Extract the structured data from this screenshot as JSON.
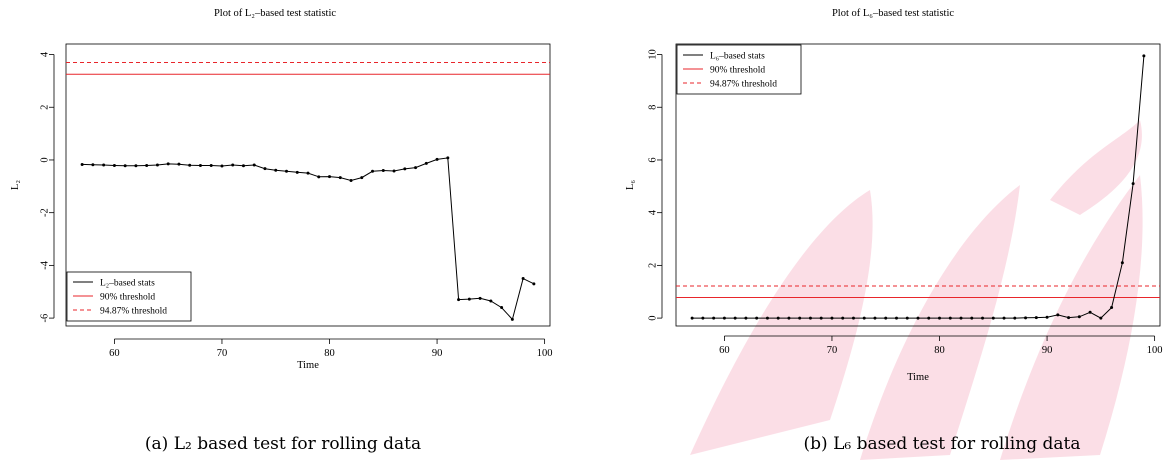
{
  "chart_data": [
    {
      "type": "line",
      "title": "Plot of L₂–based test statistic",
      "xlabel": "Time",
      "ylabel": "L₂",
      "xlim": [
        55.5,
        100.5
      ],
      "ylim": [
        -6.3,
        4.4
      ],
      "xticks": [
        60,
        70,
        80,
        90,
        100
      ],
      "yticks": [
        -6,
        -4,
        -2,
        0,
        2,
        4
      ],
      "series": [
        {
          "name": "L₂–based stats",
          "color": "#000000",
          "x": [
            57,
            58,
            59,
            60,
            61,
            62,
            63,
            64,
            65,
            66,
            67,
            68,
            69,
            70,
            71,
            72,
            73,
            74,
            75,
            76,
            77,
            78,
            79,
            80,
            81,
            82,
            83,
            84,
            85,
            86,
            87,
            88,
            89,
            90,
            91,
            92,
            93,
            94,
            95,
            96,
            97,
            98,
            99
          ],
          "y": [
            -0.17,
            -0.18,
            -0.19,
            -0.21,
            -0.22,
            -0.22,
            -0.21,
            -0.19,
            -0.15,
            -0.16,
            -0.2,
            -0.21,
            -0.21,
            -0.23,
            -0.19,
            -0.22,
            -0.19,
            -0.33,
            -0.39,
            -0.43,
            -0.47,
            -0.5,
            -0.64,
            -0.63,
            -0.67,
            -0.78,
            -0.67,
            -0.43,
            -0.4,
            -0.42,
            -0.34,
            -0.29,
            -0.13,
            0.02,
            0.08,
            -5.3,
            -5.28,
            -5.25,
            -5.35,
            -5.6,
            -6.05,
            -4.5,
            -4.7
          ]
        }
      ],
      "thresholds": [
        {
          "name": "90% threshold",
          "value": 3.25,
          "color": "#e8262b",
          "style": "solid"
        },
        {
          "name": "94.87% threshold",
          "value": 3.7,
          "color": "#e8262b",
          "style": "dashed"
        }
      ],
      "legend_position": "bottom-left",
      "caption": "(a) L₂ based test for rolling data"
    },
    {
      "type": "line",
      "title": "Plot of L₆–based test statistic",
      "xlabel": "Time",
      "ylabel": "L₆",
      "xlim": [
        55.5,
        100.5
      ],
      "ylim": [
        -0.3,
        10.4
      ],
      "xticks": [
        60,
        70,
        80,
        90,
        100
      ],
      "yticks": [
        0,
        2,
        4,
        6,
        8,
        10
      ],
      "series": [
        {
          "name": "L₆–based stats",
          "color": "#000000",
          "x": [
            57,
            58,
            59,
            60,
            61,
            62,
            63,
            64,
            65,
            66,
            67,
            68,
            69,
            70,
            71,
            72,
            73,
            74,
            75,
            76,
            77,
            78,
            79,
            80,
            81,
            82,
            83,
            84,
            85,
            86,
            87,
            88,
            89,
            90,
            91,
            92,
            93,
            94,
            95,
            96,
            97,
            98,
            99
          ],
          "y": [
            0,
            0,
            0,
            0,
            0,
            0,
            0,
            0,
            0,
            0,
            0,
            0,
            0,
            0,
            0,
            0,
            0,
            0,
            0,
            0,
            0,
            0,
            0,
            0,
            0,
            0,
            0,
            0,
            0,
            0,
            0,
            0.01,
            0.02,
            0.03,
            0.12,
            0.02,
            0.05,
            0.22,
            0.0,
            0.4,
            2.1,
            5.1,
            9.95
          ]
        }
      ],
      "thresholds": [
        {
          "name": "90% threshold",
          "value": 0.78,
          "color": "#e8262b",
          "style": "solid"
        },
        {
          "name": "94.87% threshold",
          "value": 1.22,
          "color": "#e8262b",
          "style": "dashed"
        }
      ],
      "legend_position": "top-left",
      "caption": "(b) L₆ based test for rolling data"
    }
  ]
}
